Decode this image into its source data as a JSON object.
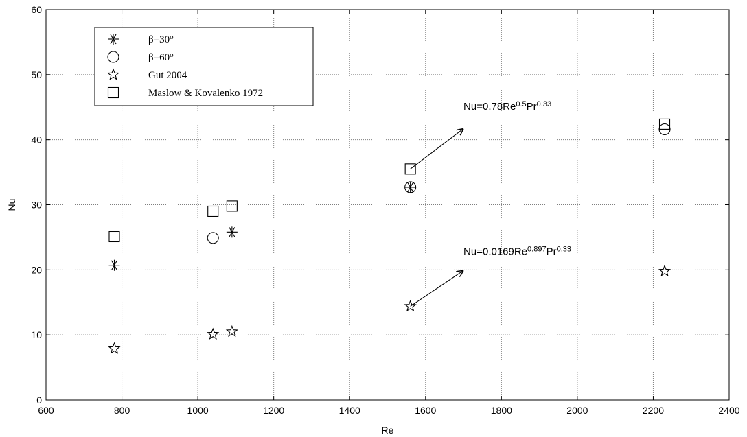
{
  "chart_data": {
    "type": "scatter",
    "title": "",
    "xlabel": "Re",
    "ylabel": "Nu",
    "xlim": [
      600,
      2400
    ],
    "ylim": [
      0,
      60
    ],
    "xticks": [
      600,
      800,
      1000,
      1200,
      1400,
      1600,
      1800,
      2000,
      2200,
      2400
    ],
    "yticks": [
      0,
      10,
      20,
      30,
      40,
      50,
      60
    ],
    "grid": true,
    "legend_position": "top-left",
    "series": [
      {
        "name": "β=30°",
        "legend_base": "β=30",
        "legend_sup": "o",
        "marker": "asterisk",
        "points": [
          [
            780,
            20.7
          ],
          [
            1090,
            25.8
          ],
          [
            1560,
            32.7
          ]
        ]
      },
      {
        "name": "β=60°",
        "legend_base": "β=60",
        "legend_sup": "o",
        "marker": "circle",
        "points": [
          [
            1040,
            24.9
          ],
          [
            1560,
            32.7
          ],
          [
            2230,
            41.6
          ]
        ]
      },
      {
        "name": "Gut 2004",
        "legend_base": "Gut 2004",
        "legend_sup": "",
        "marker": "star",
        "points": [
          [
            780,
            7.9
          ],
          [
            1040,
            10.1
          ],
          [
            1090,
            10.5
          ],
          [
            1560,
            14.4
          ],
          [
            2230,
            19.8
          ]
        ]
      },
      {
        "name": "Maslow & Kovalenko 1972",
        "legend_base": "Maslow & Kovalenko 1972",
        "legend_sup": "",
        "marker": "square",
        "points": [
          [
            780,
            25.1
          ],
          [
            1040,
            29.0
          ],
          [
            1090,
            29.8
          ],
          [
            1560,
            35.5
          ],
          [
            2230,
            42.4
          ]
        ]
      }
    ],
    "annotations": [
      {
        "parts": [
          [
            "Nu=0.78Re",
            ""
          ],
          [
            "0.5",
            "sup"
          ],
          [
            "Pr",
            ""
          ],
          [
            "0.33",
            "sup"
          ]
        ],
        "arrow_from": [
          1560,
          35.5
        ],
        "arrow_to": [
          1700,
          41.7
        ],
        "text_at": [
          1700,
          44.6
        ]
      },
      {
        "parts": [
          [
            "Nu=0.0169Re",
            ""
          ],
          [
            "0.897",
            "sup"
          ],
          [
            "Pr",
            ""
          ],
          [
            "0.33",
            "sup"
          ]
        ],
        "arrow_from": [
          1560,
          14.4
        ],
        "arrow_to": [
          1700,
          19.9
        ],
        "text_at": [
          1700,
          22.3
        ]
      }
    ]
  }
}
